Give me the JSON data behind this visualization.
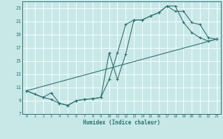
{
  "xlabel": "Humidex (Indice chaleur)",
  "bg_color": "#c8e8e8",
  "line_color": "#2a7070",
  "grid_color": "#b0d0d0",
  "xlim": [
    -0.5,
    23.5
  ],
  "ylim": [
    7,
    24
  ],
  "xticks": [
    0,
    1,
    2,
    3,
    4,
    5,
    6,
    7,
    8,
    9,
    10,
    11,
    12,
    13,
    14,
    15,
    16,
    17,
    18,
    19,
    20,
    21,
    22,
    23
  ],
  "yticks": [
    7,
    9,
    11,
    13,
    15,
    17,
    19,
    21,
    23
  ],
  "line1_x": [
    0,
    1,
    2,
    3,
    4,
    5,
    6,
    7,
    8,
    9,
    10,
    11,
    12,
    13,
    14,
    15,
    16,
    17,
    18,
    19,
    20,
    21,
    22,
    23
  ],
  "line1_y": [
    10.5,
    10.0,
    9.5,
    9.2,
    8.6,
    8.3,
    9.0,
    9.2,
    9.3,
    9.5,
    12.2,
    16.2,
    20.5,
    21.2,
    21.2,
    21.8,
    22.3,
    23.3,
    23.3,
    20.8,
    19.3,
    18.5,
    18.0,
    18.3
  ],
  "line2_x": [
    0,
    2,
    3,
    4,
    5,
    6,
    7,
    8,
    9,
    10,
    11,
    12,
    13,
    14,
    15,
    16,
    17,
    18,
    19,
    20,
    21,
    22,
    23
  ],
  "line2_y": [
    10.5,
    9.5,
    10.2,
    8.6,
    8.3,
    9.0,
    9.2,
    9.3,
    9.5,
    16.2,
    12.2,
    16.0,
    21.2,
    21.2,
    21.8,
    22.3,
    23.3,
    22.5,
    22.5,
    20.8,
    20.5,
    18.5,
    18.3
  ],
  "line3_x": [
    0,
    23
  ],
  "line3_y": [
    10.5,
    18.3
  ]
}
